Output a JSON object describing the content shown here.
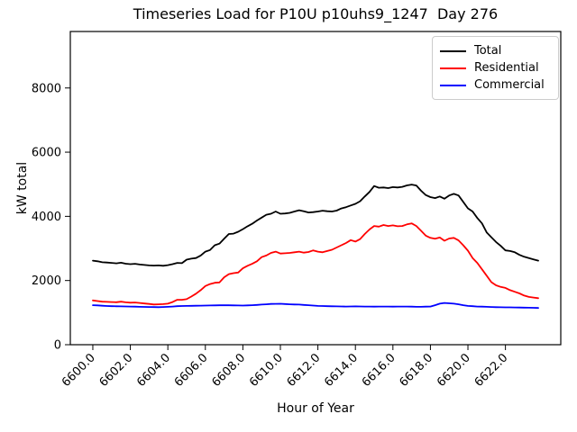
{
  "chart_data": {
    "type": "line",
    "title": "Timeseries Load for P10U p10uhs9_1247  Day 276",
    "xlabel": "Hour of Year",
    "ylabel": "kW total",
    "xlim": [
      6598.8,
      6624.95
    ],
    "ylim": [
      0,
      9760
    ],
    "grid": false,
    "legend_position": "upper right",
    "x_tick_values": [
      6600,
      6602,
      6604,
      6606,
      6608,
      6610,
      6612,
      6614,
      6616,
      6618,
      6620,
      6622
    ],
    "x_tick_labels": [
      "6600.0",
      "6602.0",
      "6604.0",
      "6606.0",
      "6608.0",
      "6610.0",
      "6612.0",
      "6614.0",
      "6616.0",
      "6618.0",
      "6620.0",
      "6622.0"
    ],
    "y_tick_values": [
      0,
      2000,
      4000,
      6000,
      8000
    ],
    "y_tick_labels": [
      "0",
      "2000",
      "4000",
      "6000",
      "8000"
    ],
    "x_start": 6600.0,
    "x_step": 0.25,
    "series": [
      {
        "name": "Total",
        "color": "#000000",
        "values": [
          2620,
          2600,
          2570,
          2560,
          2550,
          2535,
          2555,
          2525,
          2510,
          2520,
          2500,
          2485,
          2470,
          2465,
          2470,
          2460,
          2480,
          2510,
          2550,
          2540,
          2650,
          2680,
          2700,
          2780,
          2900,
          2950,
          3100,
          3150,
          3300,
          3450,
          3460,
          3520,
          3600,
          3690,
          3770,
          3870,
          3960,
          4050,
          4080,
          4150,
          4080,
          4090,
          4110,
          4150,
          4190,
          4160,
          4120,
          4130,
          4150,
          4175,
          4160,
          4150,
          4180,
          4245,
          4285,
          4340,
          4390,
          4470,
          4620,
          4760,
          4945,
          4890,
          4900,
          4880,
          4910,
          4900,
          4920,
          4965,
          4990,
          4960,
          4800,
          4665,
          4600,
          4570,
          4620,
          4550,
          4650,
          4700,
          4650,
          4450,
          4250,
          4150,
          3950,
          3780,
          3500,
          3350,
          3200,
          3080,
          2940,
          2920,
          2880,
          2800,
          2740,
          2700,
          2660,
          2620
        ]
      },
      {
        "name": "Residential",
        "color": "#ff0000",
        "values": [
          1380,
          1360,
          1340,
          1335,
          1330,
          1325,
          1340,
          1320,
          1310,
          1315,
          1300,
          1285,
          1270,
          1255,
          1260,
          1265,
          1280,
          1330,
          1400,
          1400,
          1420,
          1500,
          1590,
          1700,
          1830,
          1890,
          1930,
          1940,
          2100,
          2200,
          2230,
          2250,
          2380,
          2460,
          2520,
          2600,
          2730,
          2780,
          2860,
          2900,
          2840,
          2850,
          2860,
          2880,
          2900,
          2870,
          2890,
          2940,
          2900,
          2880,
          2920,
          2960,
          3030,
          3100,
          3170,
          3260,
          3215,
          3290,
          3450,
          3590,
          3700,
          3680,
          3730,
          3700,
          3720,
          3690,
          3700,
          3750,
          3780,
          3700,
          3550,
          3400,
          3330,
          3300,
          3340,
          3240,
          3310,
          3330,
          3250,
          3100,
          2930,
          2700,
          2550,
          2350,
          2150,
          1950,
          1850,
          1800,
          1770,
          1700,
          1650,
          1600,
          1530,
          1490,
          1470,
          1450
        ]
      },
      {
        "name": "Commercial",
        "color": "#0000ff",
        "values": [
          1230,
          1225,
          1215,
          1205,
          1200,
          1198,
          1195,
          1192,
          1190,
          1185,
          1180,
          1178,
          1175,
          1172,
          1170,
          1175,
          1180,
          1190,
          1200,
          1205,
          1210,
          1212,
          1215,
          1218,
          1220,
          1222,
          1225,
          1228,
          1230,
          1228,
          1225,
          1222,
          1220,
          1225,
          1230,
          1240,
          1250,
          1260,
          1270,
          1272,
          1275,
          1268,
          1260,
          1255,
          1250,
          1240,
          1230,
          1220,
          1210,
          1205,
          1200,
          1198,
          1195,
          1192,
          1190,
          1192,
          1195,
          1192,
          1190,
          1188,
          1185,
          1188,
          1190,
          1188,
          1185,
          1188,
          1190,
          1188,
          1185,
          1182,
          1180,
          1185,
          1190,
          1230,
          1280,
          1300,
          1290,
          1280,
          1260,
          1230,
          1210,
          1200,
          1190,
          1185,
          1180,
          1175,
          1170,
          1168,
          1165,
          1163,
          1160,
          1158,
          1155,
          1152,
          1150,
          1145
        ]
      }
    ]
  }
}
